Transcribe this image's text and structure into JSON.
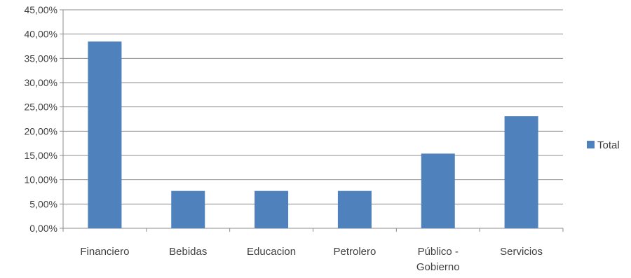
{
  "chart_data": {
    "type": "bar",
    "categories": [
      "Financiero",
      "Bebidas",
      "Educacion",
      "Petrolero",
      "Público - Gobierno",
      "Servicios"
    ],
    "category_lines": [
      [
        "Financiero"
      ],
      [
        "Bebidas"
      ],
      [
        "Educacion"
      ],
      [
        "Petrolero"
      ],
      [
        "Público -",
        "Gobierno"
      ],
      [
        "Servicios"
      ]
    ],
    "series": [
      {
        "name": "Total",
        "values": [
          38.46,
          7.69,
          7.69,
          7.69,
          15.38,
          23.08
        ]
      }
    ],
    "y_tick_labels": [
      "0,00%",
      "5,00%",
      "10,00%",
      "15,00%",
      "20,00%",
      "25,00%",
      "30,00%",
      "35,00%",
      "40,00%",
      "45,00%"
    ],
    "ylim": [
      0,
      45
    ],
    "y_step": 5,
    "grid": true,
    "legend_position": "right",
    "colors": {
      "bar": "#4F81BD",
      "grid": "#8C8C8C",
      "axis": "#8C8C8C"
    }
  }
}
